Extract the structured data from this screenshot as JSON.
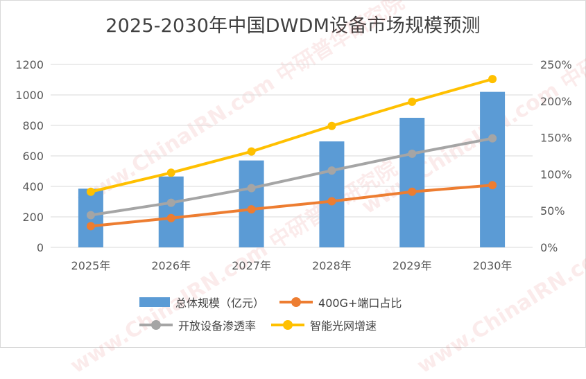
{
  "chart_data": {
    "type": "bar",
    "title": "2025-2030年中国DWDM设备市场规模预测",
    "categories": [
      "2025年",
      "2026年",
      "2027年",
      "2028年",
      "2029年",
      "2030年"
    ],
    "y_left": {
      "ylim": [
        0,
        1200
      ],
      "ticks": [
        "0",
        "200",
        "400",
        "600",
        "800",
        "1000",
        "1200"
      ]
    },
    "y_right": {
      "ylim": [
        0,
        250
      ],
      "ticks": [
        "0%",
        "50%",
        "100%",
        "150%",
        "200%",
        "250%"
      ]
    },
    "grid": true,
    "legend_position": "bottom",
    "series": [
      {
        "name": "总体规模（亿元）",
        "type": "bar",
        "axis": "left",
        "color": "#5b9bd5",
        "values": [
          385,
          465,
          570,
          695,
          850,
          1020
        ]
      },
      {
        "name": "400G+端口占比",
        "type": "line",
        "axis": "right",
        "color": "#ed7d31",
        "values": [
          29,
          40,
          52,
          63,
          76,
          85
        ]
      },
      {
        "name": "开放设备渗透率",
        "type": "line",
        "axis": "right",
        "color": "#a5a5a5",
        "values": [
          44,
          61,
          81,
          105,
          128,
          149
        ]
      },
      {
        "name": "智能光网增速",
        "type": "line",
        "axis": "right",
        "color": "#ffc000",
        "values": [
          76,
          102,
          131,
          166,
          199,
          230
        ]
      }
    ]
  },
  "watermarks": [
    "www.ChinaIRN.com 中研普华研究院",
    "www.ChinaIRN.com 中研普华研究院",
    "www.ChinaIRN.com 中研普华研究院",
    "www.ChinaIRN.com 中研普华研究院"
  ]
}
